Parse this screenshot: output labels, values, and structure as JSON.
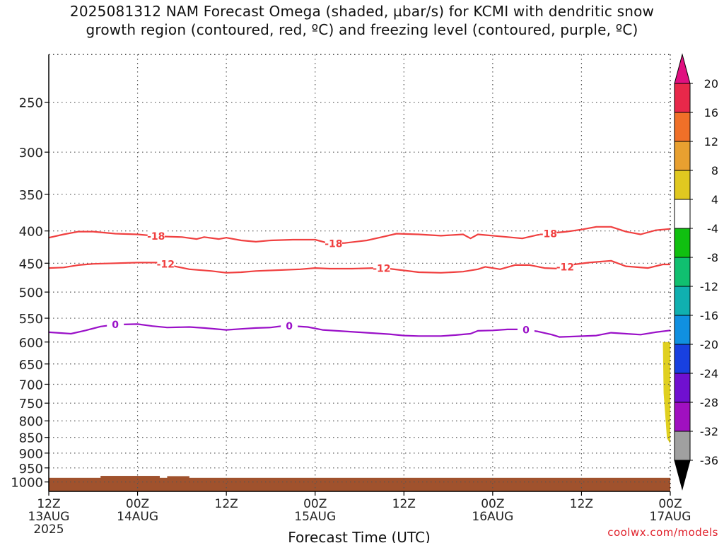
{
  "title_line1": "2025081312 NAM Forecast Omega (shaded, µbar/s) for KCMI with dendritic snow",
  "title_line2": "growth region (contoured, red, ºC) and freezing level (contoured, purple, ºC)",
  "credit": "coolwx.com/models",
  "chart_data": {
    "type": "time-height cross section",
    "xlabel": "Forecast Time (UTC)",
    "x_ticks": [
      {
        "hour": 0,
        "label1": "12Z",
        "label2": "13AUG",
        "label3": "2025"
      },
      {
        "hour": 12,
        "label1": "00Z",
        "label2": "14AUG",
        "label3": ""
      },
      {
        "hour": 24,
        "label1": "12Z",
        "label2": "",
        "label3": ""
      },
      {
        "hour": 36,
        "label1": "00Z",
        "label2": "15AUG",
        "label3": ""
      },
      {
        "hour": 48,
        "label1": "12Z",
        "label2": "",
        "label3": ""
      },
      {
        "hour": 60,
        "label1": "00Z",
        "label2": "16AUG",
        "label3": ""
      },
      {
        "hour": 72,
        "label1": "12Z",
        "label2": "",
        "label3": ""
      },
      {
        "hour": 84,
        "label1": "00Z",
        "label2": "17AUG",
        "label3": ""
      }
    ],
    "y_axis": {
      "scale": "log-pressure",
      "range_hpa": [
        1035,
        210
      ],
      "ticks": [
        250,
        300,
        350,
        400,
        450,
        500,
        550,
        600,
        650,
        700,
        750,
        800,
        850,
        900,
        950,
        1000
      ]
    },
    "colorbar": {
      "labels": [
        "20",
        "16",
        "12",
        "8",
        "4",
        "-4",
        "-8",
        "-12",
        "-16",
        "-20",
        "-24",
        "-28",
        "-32",
        "-36"
      ],
      "colors": [
        "#e8284a",
        "#f07028",
        "#e8a030",
        "#e0c820",
        "#ffffff",
        "#10c010",
        "#10c070",
        "#10b0b0",
        "#1090e0",
        "#1840e0",
        "#7010d0",
        "#a010c0",
        "#a0a0a0"
      ],
      "top_arrow_color": "#e01080",
      "bottom_arrow_color": "#000000"
    },
    "series": [
      {
        "name": "-18",
        "color": "#f04040",
        "labels_at_hours": [
          14.5,
          38.5,
          67.5
        ],
        "points": [
          [
            0,
            410
          ],
          [
            2,
            405
          ],
          [
            4,
            401
          ],
          [
            6,
            401
          ],
          [
            9,
            404
          ],
          [
            12,
            405
          ],
          [
            15,
            408
          ],
          [
            18,
            409
          ],
          [
            20,
            412
          ],
          [
            21,
            409
          ],
          [
            23,
            412
          ],
          [
            24,
            410
          ],
          [
            26,
            414
          ],
          [
            28,
            416
          ],
          [
            30,
            414
          ],
          [
            33,
            413
          ],
          [
            36,
            413
          ],
          [
            38,
            419
          ],
          [
            40,
            418
          ],
          [
            43,
            414
          ],
          [
            45,
            409
          ],
          [
            47,
            404
          ],
          [
            50,
            405
          ],
          [
            53,
            407
          ],
          [
            56,
            405
          ],
          [
            57,
            411
          ],
          [
            58,
            405
          ],
          [
            61,
            408
          ],
          [
            64,
            411
          ],
          [
            66,
            406
          ],
          [
            68,
            403
          ],
          [
            70,
            401
          ],
          [
            72,
            398
          ],
          [
            74,
            394
          ],
          [
            76,
            394
          ],
          [
            78,
            401
          ],
          [
            80,
            405
          ],
          [
            82,
            399
          ],
          [
            84,
            397
          ]
        ]
      },
      {
        "name": "-12",
        "color": "#f04040",
        "labels_at_hours": [
          15.8,
          45.0,
          69.8
        ],
        "points": [
          [
            0,
            458
          ],
          [
            2,
            457
          ],
          [
            4,
            453
          ],
          [
            6,
            451
          ],
          [
            9,
            450
          ],
          [
            12,
            449
          ],
          [
            15,
            449
          ],
          [
            17,
            455
          ],
          [
            19,
            460
          ],
          [
            22,
            463
          ],
          [
            24,
            466
          ],
          [
            26,
            465
          ],
          [
            28,
            463
          ],
          [
            30,
            462
          ],
          [
            34,
            460
          ],
          [
            36,
            458
          ],
          [
            38,
            459
          ],
          [
            41,
            459
          ],
          [
            44,
            458
          ],
          [
            46,
            459
          ],
          [
            48,
            462
          ],
          [
            50,
            465
          ],
          [
            53,
            466
          ],
          [
            56,
            464
          ],
          [
            58,
            460
          ],
          [
            59,
            456
          ],
          [
            61,
            460
          ],
          [
            63,
            453
          ],
          [
            65,
            453
          ],
          [
            67,
            458
          ],
          [
            69,
            459
          ],
          [
            71,
            452
          ],
          [
            73,
            449
          ],
          [
            76,
            446
          ],
          [
            78,
            455
          ],
          [
            81,
            458
          ],
          [
            83,
            452
          ],
          [
            84,
            452
          ]
        ]
      },
      {
        "name": "0",
        "color": "#9a10c8",
        "labels_at_hours": [
          9.0,
          32.5,
          64.5
        ],
        "points": [
          [
            0,
            579
          ],
          [
            3,
            582
          ],
          [
            5,
            575
          ],
          [
            7,
            567
          ],
          [
            9,
            563
          ],
          [
            12,
            562
          ],
          [
            14,
            566
          ],
          [
            16,
            569
          ],
          [
            19,
            568
          ],
          [
            21,
            570
          ],
          [
            24,
            574
          ],
          [
            26,
            572
          ],
          [
            28,
            570
          ],
          [
            30,
            569
          ],
          [
            32,
            565
          ],
          [
            35,
            568
          ],
          [
            37,
            574
          ],
          [
            40,
            577
          ],
          [
            43,
            580
          ],
          [
            46,
            583
          ],
          [
            48,
            586
          ],
          [
            50,
            587
          ],
          [
            53,
            587
          ],
          [
            55,
            585
          ],
          [
            57,
            582
          ],
          [
            58,
            576
          ],
          [
            60,
            575
          ],
          [
            62,
            573
          ],
          [
            64,
            573
          ],
          [
            66,
            577
          ],
          [
            68,
            584
          ],
          [
            69,
            589
          ],
          [
            71,
            588
          ],
          [
            74,
            586
          ],
          [
            76,
            580
          ],
          [
            78,
            582
          ],
          [
            80,
            584
          ],
          [
            82,
            579
          ],
          [
            84,
            575
          ]
        ]
      }
    ],
    "shaded_regions": [
      {
        "name": "omega 4-8 yellow patch",
        "color": "#e0d020",
        "hours": [
          83.0,
          84.0
        ],
        "pressure_hpa": [
          600,
          870
        ]
      }
    ],
    "terrain": {
      "color": "#a0522d",
      "top_hpa": 985,
      "bumps": [
        {
          "hours": [
            7,
            15
          ],
          "top_hpa": 978
        },
        {
          "hours": [
            16,
            19
          ],
          "top_hpa": 979
        }
      ]
    }
  }
}
